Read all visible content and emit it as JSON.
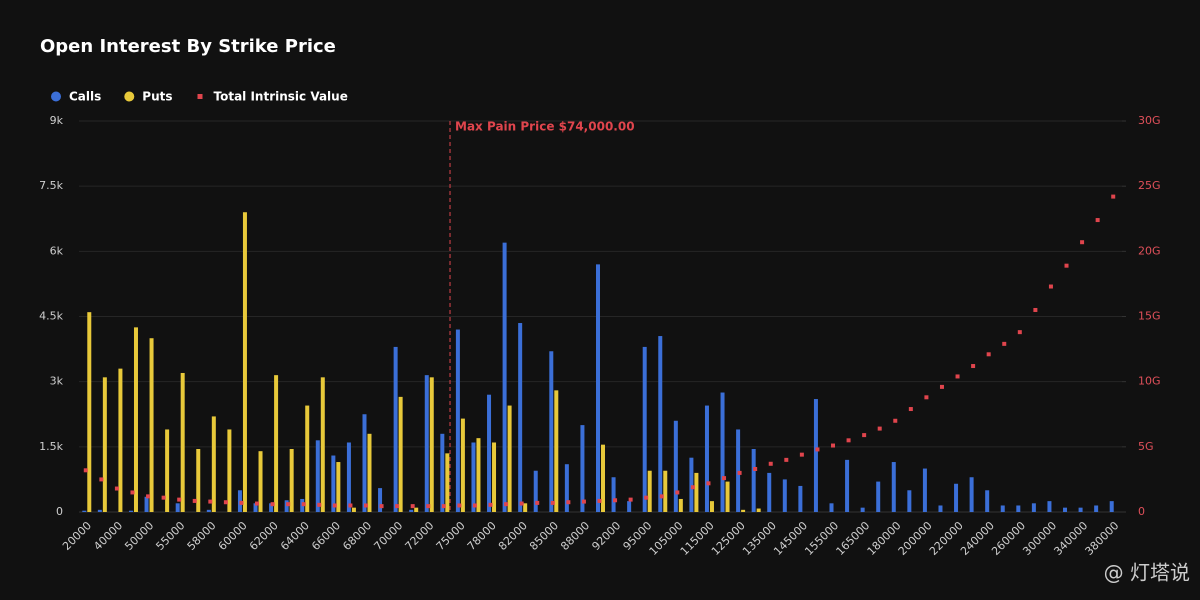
{
  "chart_data": {
    "type": "bar",
    "title": "Open Interest By Strike Price",
    "categories": [
      "20000",
      null,
      "40000",
      null,
      "50000",
      null,
      "55000",
      null,
      "58000",
      null,
      "60000",
      null,
      "62000",
      null,
      "64000",
      null,
      "66000",
      null,
      "68000",
      null,
      "70000",
      null,
      "72000",
      null,
      "75000",
      null,
      "78000",
      null,
      "82000",
      null,
      "85000",
      null,
      "88000",
      null,
      "92000",
      null,
      "95000",
      null,
      "105000",
      null,
      "115000",
      null,
      "125000",
      null,
      "135000",
      null,
      "145000",
      null,
      "155000",
      null,
      "165000",
      null,
      "180000",
      null,
      "200000",
      null,
      "220000",
      null,
      "240000",
      null,
      "260000",
      null,
      "300000",
      null,
      "340000",
      null,
      "380000"
    ],
    "series": [
      {
        "name": "Calls",
        "color": "#3b6fd8",
        "values": [
          30,
          50,
          0,
          30,
          350,
          0,
          200,
          0,
          50,
          0,
          500,
          200,
          200,
          270,
          300,
          1650,
          1300,
          1600,
          2250,
          550,
          3800,
          50,
          3150,
          1800,
          4200,
          1600,
          2700,
          6200,
          4350,
          950,
          3700,
          1100,
          2000,
          5700,
          800,
          250,
          3800,
          4050,
          2100,
          1250,
          2450,
          2750,
          1900,
          1450,
          900,
          750,
          600,
          2600,
          200,
          1200,
          100,
          700,
          1150,
          500,
          1000,
          150,
          650,
          800,
          500,
          150,
          150,
          200,
          250,
          100,
          100,
          150,
          250
        ]
      },
      {
        "name": "Puts",
        "color": "#e8c93a",
        "values": [
          4600,
          3100,
          3300,
          4250,
          4000,
          1900,
          3200,
          1450,
          2200,
          1900,
          6900,
          1400,
          3150,
          1450,
          2450,
          3100,
          1150,
          100,
          1800,
          0,
          2650,
          100,
          3100,
          1350,
          2150,
          1700,
          1600,
          2450,
          200,
          0,
          2800,
          0,
          0,
          1550,
          0,
          0,
          950,
          950,
          300,
          900,
          250,
          700,
          50,
          80,
          0,
          0,
          0,
          0,
          0,
          0,
          0,
          0,
          0,
          0,
          0,
          0,
          0,
          0,
          0,
          0,
          0,
          0,
          0,
          0,
          0,
          0,
          0
        ]
      },
      {
        "name": "Total Intrinsic Value",
        "color": "#e0454d",
        "axis": "y2",
        "values": [
          3.2,
          2.5,
          1.8,
          1.5,
          1.2,
          1.1,
          0.95,
          0.85,
          0.8,
          0.75,
          0.7,
          0.65,
          0.6,
          0.6,
          0.6,
          0.55,
          0.5,
          0.5,
          0.5,
          0.45,
          0.45,
          0.45,
          0.45,
          0.45,
          0.5,
          0.5,
          0.55,
          0.6,
          0.65,
          0.7,
          0.7,
          0.75,
          0.8,
          0.85,
          0.9,
          0.95,
          1.1,
          1.2,
          1.5,
          1.9,
          2.2,
          2.6,
          3.0,
          3.3,
          3.7,
          4.0,
          4.4,
          4.8,
          5.1,
          5.5,
          5.9,
          6.4,
          7.0,
          7.9,
          8.8,
          9.6,
          10.4,
          11.2,
          12.1,
          12.9,
          13.8,
          15.5,
          17.3,
          18.9,
          20.7,
          22.4,
          24.2
        ]
      }
    ],
    "ylim": [
      0,
      9000
    ],
    "yticks": [
      0,
      {
        "value": 1500,
        "label": "1.5k"
      },
      {
        "value": 3000,
        "label": "3k"
      },
      {
        "value": 4500,
        "label": "4.5k"
      },
      {
        "value": 6000,
        "label": "6k"
      },
      {
        "value": 7500,
        "label": "7.5k"
      },
      {
        "value": 9000,
        "label": "9k"
      }
    ],
    "y2lim": [
      0,
      30
    ],
    "y2ticks": [
      0,
      {
        "value": 5,
        "label": "5G"
      },
      {
        "value": 10,
        "label": "10G"
      },
      {
        "value": 15,
        "label": "15G"
      },
      {
        "value": 20,
        "label": "20G"
      },
      {
        "value": 25,
        "label": "25G"
      },
      {
        "value": 30,
        "label": "30G"
      }
    ],
    "grid": true,
    "legend": "top-left",
    "annotation": {
      "text": "Max Pain Price $74,000.00",
      "x": 74000
    },
    "watermark": "@ 灯塔说"
  }
}
